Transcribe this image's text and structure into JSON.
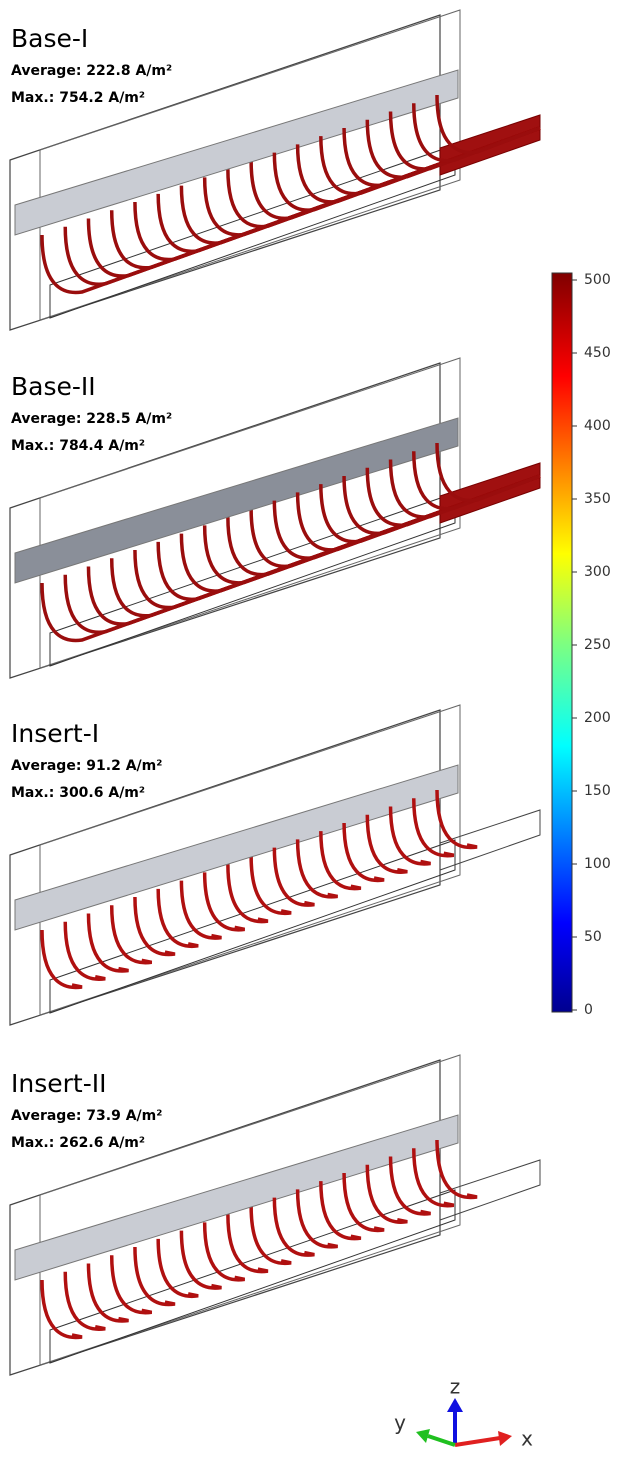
{
  "panels": [
    {
      "title": "Base-I",
      "average": "Average: 222.8 A/m²",
      "max": "Max.: 754.2 A/m²"
    },
    {
      "title": "Base-II",
      "average": "Average: 228.5 A/m²",
      "max": "Max.: 784.4 A/m²"
    },
    {
      "title": "Insert-I",
      "average": "Average: 91.2 A/m²",
      "max": "Max.: 300.6 A/m²"
    },
    {
      "title": "Insert-II",
      "average": "Average: 73.9 A/m²",
      "max": "Max.: 262.6 A/m²"
    }
  ],
  "colorbar": {
    "lim": [
      0,
      500
    ],
    "ticks": [
      0,
      50,
      100,
      150,
      200,
      250,
      300,
      350,
      400,
      450,
      500
    ]
  },
  "axes": {
    "z": "z",
    "y": "y",
    "x": "x"
  }
}
